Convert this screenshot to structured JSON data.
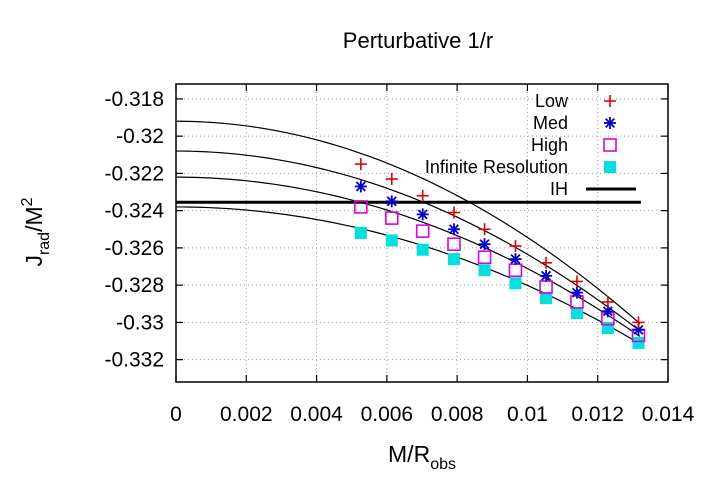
{
  "chart_data": {
    "type": "scatter",
    "title": "Perturbative 1/r",
    "xlabel": "M/R",
    "xlabel_sub": "obs",
    "ylabel": "J",
    "ylabel_sub": "rad",
    "ylabel_tail": "/M",
    "ylabel_sup": "2",
    "xlim": [
      0,
      0.014
    ],
    "ylim": [
      -0.3332,
      -0.3172
    ],
    "x_ticks": [
      0,
      0.002,
      0.004,
      0.006,
      0.008,
      0.01,
      0.012,
      0.014
    ],
    "x_tick_labels": [
      "0",
      "0.002",
      "0.004",
      "0.006",
      "0.008",
      "0.01",
      "0.012",
      "0.014"
    ],
    "y_ticks": [
      -0.318,
      -0.32,
      -0.322,
      -0.324,
      -0.326,
      -0.328,
      -0.33,
      -0.332
    ],
    "y_tick_labels": [
      "-0.318",
      "-0.32",
      "-0.322",
      "-0.324",
      "-0.326",
      "-0.328",
      "-0.33",
      "-0.332"
    ],
    "grid": true,
    "legend_position": "top-right",
    "x": [
      0.00526,
      0.00614,
      0.00702,
      0.00791,
      0.00878,
      0.00966,
      0.01053,
      0.01141,
      0.01229,
      0.01316
    ],
    "series": [
      {
        "name": "Low",
        "marker": "plus",
        "color": "#e00000",
        "values": [
          -0.3215,
          -0.3223,
          -0.3232,
          -0.3241,
          -0.325,
          -0.3259,
          -0.3268,
          -0.3278,
          -0.3289,
          -0.33
        ],
        "fit_intercept": -0.3192
      },
      {
        "name": "Med",
        "marker": "star",
        "color": "#0000d0",
        "values": [
          -0.3227,
          -0.3235,
          -0.3242,
          -0.325,
          -0.3258,
          -0.3266,
          -0.3275,
          -0.3284,
          -0.3294,
          -0.3304
        ],
        "fit_intercept": -0.3208
      },
      {
        "name": "High",
        "marker": "square",
        "color": "#e000e0",
        "values": [
          -0.3238,
          -0.3244,
          -0.3251,
          -0.3258,
          -0.3265,
          -0.3272,
          -0.3281,
          -0.3289,
          -0.3298,
          -0.3307
        ],
        "fit_intercept": -0.3222
      },
      {
        "name": "Infinite Resolution",
        "marker": "filled-square",
        "color": "#00e0e0",
        "values": [
          -0.3252,
          -0.3256,
          -0.3261,
          -0.3266,
          -0.3272,
          -0.3279,
          -0.3287,
          -0.3295,
          -0.3303,
          -0.3311
        ],
        "fit_intercept": -0.3238
      }
    ],
    "reference_line": {
      "name": "IH",
      "y": -0.32355,
      "color": "#000000"
    }
  }
}
